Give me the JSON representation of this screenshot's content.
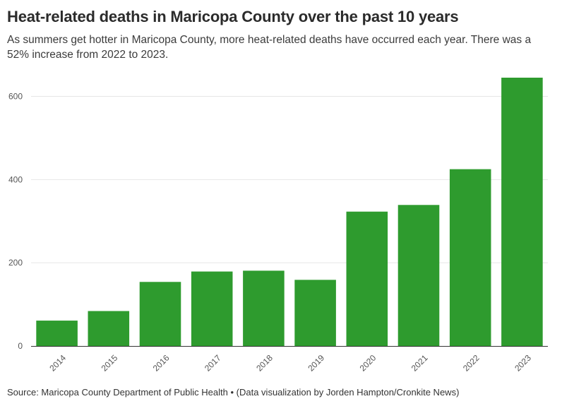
{
  "header": {
    "title": "Heat-related deaths in Maricopa County over the past 10 years",
    "subtitle": "As summers get hotter in Maricopa County, more heat-related deaths have occurred each year. There was a 52% increase from 2022 to 2023."
  },
  "footer": {
    "source": "Source: Maricopa County Department of Public Health • (Data visualization by Jorden Hampton/Cronkite News)"
  },
  "colors": {
    "bar": "#2e9b2e",
    "grid": "#e6e6e6",
    "axis": "#333333"
  },
  "chart_data": {
    "type": "bar",
    "categories": [
      "2014",
      "2015",
      "2016",
      "2017",
      "2018",
      "2019",
      "2020",
      "2021",
      "2022",
      "2023"
    ],
    "values": [
      61,
      84,
      154,
      179,
      181,
      159,
      323,
      339,
      425,
      645
    ],
    "title": "Heat-related deaths in Maricopa County over the past 10 years",
    "xlabel": "",
    "ylabel": "",
    "ylim": [
      0,
      645
    ],
    "yticks": [
      0,
      200,
      400,
      600
    ],
    "grid": true,
    "legend": "none"
  }
}
